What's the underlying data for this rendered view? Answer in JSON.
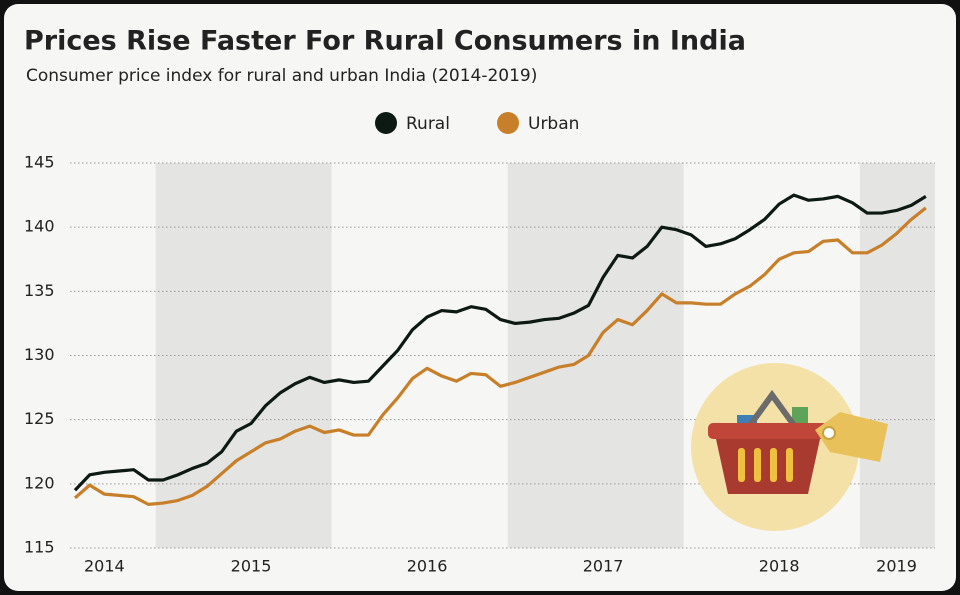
{
  "chart_data": {
    "type": "line",
    "title": "Prices Rise Faster For Rural Consumers in India",
    "subtitle": "Consumer price index for rural and urban India (2014-2019)",
    "categories": [
      null,
      null,
      "2014",
      null,
      null,
      null,
      null,
      null,
      null,
      null,
      null,
      null,
      "2015",
      null,
      null,
      null,
      null,
      null,
      null,
      null,
      null,
      null,
      null,
      null,
      "2016",
      null,
      null,
      null,
      null,
      null,
      null,
      null,
      null,
      null,
      null,
      null,
      "2017",
      null,
      null,
      null,
      null,
      null,
      null,
      null,
      null,
      null,
      null,
      null,
      "2018",
      null,
      null,
      null,
      null,
      null,
      null,
      null,
      "2019",
      null,
      null
    ],
    "series": [
      {
        "name": "Rural",
        "color": "#0d1a14",
        "values": [
          119.5,
          120.7,
          120.9,
          121.0,
          121.1,
          120.3,
          120.3,
          120.7,
          121.2,
          121.6,
          122.5,
          124.1,
          124.7,
          126.1,
          127.1,
          127.8,
          128.3,
          127.9,
          128.1,
          127.9,
          128.0,
          129.2,
          130.4,
          132.0,
          133.0,
          133.5,
          133.4,
          133.8,
          133.6,
          132.8,
          132.5,
          132.6,
          132.8,
          132.9,
          133.3,
          133.9,
          136.1,
          137.8,
          137.6,
          138.5,
          140.0,
          139.8,
          139.4,
          138.5,
          138.7,
          139.1,
          139.8,
          140.6,
          141.8,
          142.5,
          142.1,
          142.2,
          142.4,
          141.9,
          141.1,
          141.1,
          141.3,
          141.7,
          142.4
        ]
      },
      {
        "name": "Urban",
        "color": "#c87f29",
        "values": [
          118.9,
          119.9,
          119.2,
          119.1,
          119.0,
          118.4,
          118.5,
          118.7,
          119.1,
          119.8,
          120.8,
          121.8,
          122.5,
          123.2,
          123.5,
          124.1,
          124.5,
          124.0,
          124.2,
          123.8,
          123.8,
          125.4,
          126.7,
          128.2,
          129.0,
          128.4,
          128.0,
          128.6,
          128.5,
          127.6,
          127.9,
          128.3,
          128.7,
          129.1,
          129.3,
          130.0,
          131.8,
          132.8,
          132.4,
          133.5,
          134.8,
          134.1,
          134.1,
          134.0,
          134.0,
          134.8,
          135.4,
          136.3,
          137.5,
          138.0,
          138.1,
          138.9,
          139.0,
          138.0,
          138.0,
          138.6,
          139.5,
          140.6,
          141.5
        ]
      }
    ],
    "ylim": [
      115,
      145
    ],
    "yticks": [
      115,
      120,
      125,
      130,
      135,
      140,
      145
    ],
    "grid": true,
    "legend": "top"
  }
}
